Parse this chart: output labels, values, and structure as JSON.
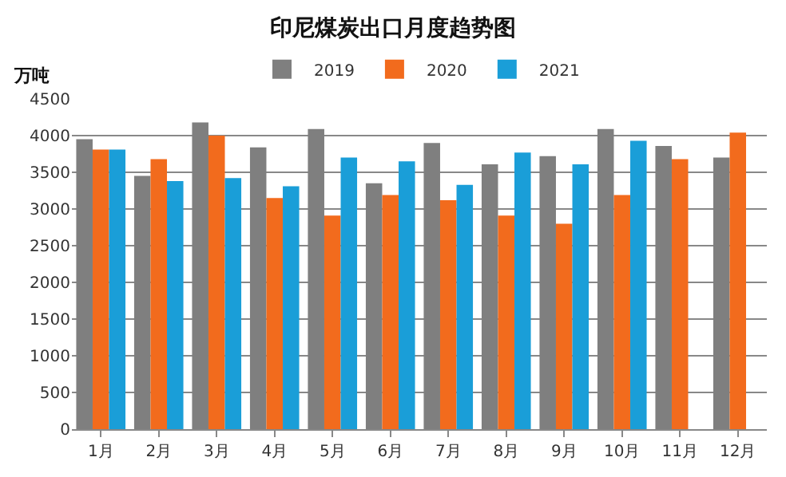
{
  "chart_data": {
    "type": "bar",
    "title": "印尼煤炭出口月度趋势图",
    "ylabel": "万吨",
    "categories": [
      "1月",
      "2月",
      "3月",
      "4月",
      "5月",
      "6月",
      "7月",
      "8月",
      "9月",
      "10月",
      "11月",
      "12月"
    ],
    "series": [
      {
        "name": "2019",
        "color": "#7f7f7f",
        "values": [
          3950,
          3450,
          4180,
          3840,
          4090,
          3350,
          3900,
          3610,
          3720,
          4090,
          3860,
          3700
        ]
      },
      {
        "name": "2020",
        "color": "#f26b1d",
        "values": [
          3810,
          3680,
          4000,
          3150,
          2910,
          3190,
          3120,
          2910,
          2800,
          3190,
          3680,
          4040
        ]
      },
      {
        "name": "2021",
        "color": "#1a9ed8",
        "values": [
          3810,
          3380,
          3420,
          3310,
          3700,
          3650,
          3330,
          3770,
          3610,
          3930,
          null,
          null
        ]
      }
    ],
    "ylim": [
      0,
      4500
    ],
    "yticks": [
      0,
      500,
      1000,
      1500,
      2000,
      2500,
      3000,
      3500,
      4000,
      4500
    ],
    "grid": "y",
    "legend": "top"
  }
}
